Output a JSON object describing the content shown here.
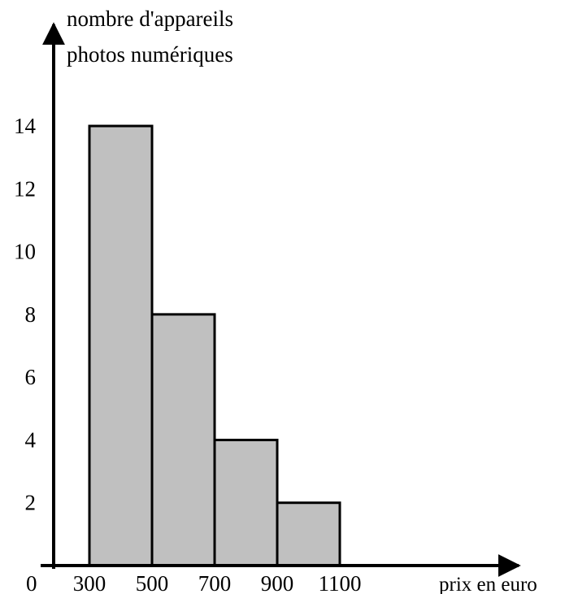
{
  "chart_data": {
    "type": "bar",
    "title": "",
    "ylabel_lines": [
      "nombre d'appareils",
      "photos numériques"
    ],
    "xlabel": "prix en euro",
    "origin_label": "0",
    "bins": [
      {
        "start": 300,
        "end": 500,
        "value": 14
      },
      {
        "start": 500,
        "end": 700,
        "value": 8
      },
      {
        "start": 700,
        "end": 900,
        "value": 4
      },
      {
        "start": 900,
        "end": 1100,
        "value": 2
      }
    ],
    "x_ticks": [
      "300",
      "500",
      "700",
      "900",
      "1100"
    ],
    "y_ticks": [
      "2",
      "4",
      "6",
      "8",
      "10",
      "12",
      "14"
    ],
    "xlim": [
      300,
      1100
    ],
    "ylim": [
      0,
      14
    ],
    "grid": false,
    "bar_color": "#c0c0c0",
    "edge_color": "#000000"
  }
}
